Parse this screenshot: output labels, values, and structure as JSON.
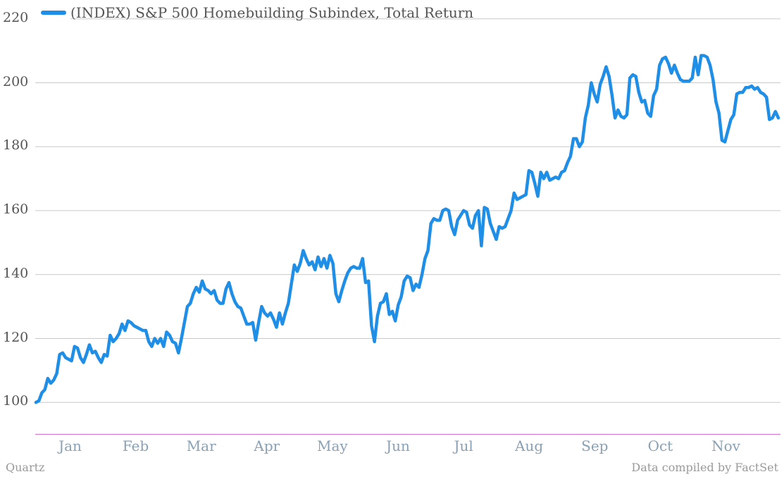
{
  "chart_data": {
    "type": "line",
    "series": [
      {
        "name": "(INDEX) S&P 500 Homebuilding Subindex, Total Return",
        "color": "#1f8ee6",
        "values": [
          100,
          100.5,
          103,
          104,
          107.5,
          106,
          107,
          109,
          115,
          115.5,
          114,
          113.5,
          113,
          117.5,
          117,
          114,
          112.5,
          115,
          118,
          115.5,
          116,
          114,
          112.5,
          115,
          114.5,
          121,
          119,
          120,
          121.5,
          124.5,
          122.5,
          125.5,
          125,
          124,
          123.5,
          123,
          122.5,
          122.5,
          119,
          117.5,
          120,
          118.5,
          120,
          117.5,
          122,
          121,
          119,
          118.5,
          115.5,
          120,
          125,
          130,
          131,
          134,
          136,
          134.5,
          138,
          135.5,
          135,
          134,
          135,
          132,
          131,
          131,
          135.5,
          137.5,
          134,
          131.5,
          130,
          129.5,
          127,
          124.5,
          124.5,
          125,
          119.5,
          125,
          130,
          128,
          127,
          128,
          126,
          123.5,
          128,
          124.5,
          128,
          131,
          137,
          143,
          141,
          143.5,
          147.5,
          145,
          143,
          144,
          141.5,
          145.5,
          142.5,
          145,
          142,
          146,
          143.5,
          134,
          131.5,
          135,
          138,
          140.5,
          142,
          142.5,
          142,
          142,
          145,
          137.5,
          138,
          124,
          119,
          127,
          131,
          131.5,
          134,
          127.5,
          128.5,
          125.5,
          130.5,
          133,
          138,
          139.5,
          139,
          135,
          137,
          136,
          140,
          145,
          147.5,
          156,
          157.5,
          157,
          157,
          160,
          160.5,
          160,
          155,
          152.5,
          157,
          158.5,
          160,
          159.5,
          155.5,
          154.5,
          158.5,
          160,
          149,
          161,
          160.5,
          156,
          153.5,
          151,
          155,
          154.5,
          155,
          157.5,
          160,
          165.5,
          163.5,
          164,
          164.5,
          165,
          172.5,
          172,
          168.5,
          164.5,
          172,
          170,
          172,
          169.5,
          170,
          170.5,
          170,
          172,
          172.5,
          175,
          177,
          182.5,
          182.5,
          180,
          181.5,
          189,
          193,
          200,
          196.5,
          194,
          199.5,
          202,
          205,
          202,
          196,
          189,
          191.5,
          189.5,
          189,
          190,
          201.5,
          202.5,
          202,
          197,
          194,
          194.5,
          190.5,
          189.5,
          196,
          198,
          205.5,
          207.5,
          208,
          206,
          203,
          205.5,
          203,
          201,
          200.5,
          200.5,
          200.5,
          201.5,
          208,
          202.5,
          208.5,
          208.5,
          208,
          205.5,
          201,
          194,
          190.5,
          182,
          181.5,
          185,
          188.5,
          190,
          196.5,
          197,
          197,
          198.5,
          198.5,
          199,
          198,
          198.5,
          197,
          196.5,
          195.5,
          188.5,
          189,
          191,
          189
        ],
        "start": "2013-01-01",
        "end": "2013-11-30"
      }
    ],
    "ylim": [
      90,
      220
    ],
    "yticks": [
      100,
      120,
      140,
      160,
      180,
      200,
      220
    ],
    "xticks": [
      "Jan",
      "Feb",
      "Mar",
      "Apr",
      "May",
      "Jun",
      "Jul",
      "Aug",
      "Sep",
      "Oct",
      "Nov"
    ],
    "grid": true,
    "legend_position": "top-left"
  },
  "footer": {
    "source_left": "Quartz",
    "source_right": "Data compiled by FactSet"
  },
  "colors": {
    "line": "#1f8ee6",
    "grid": "#c8c8c8",
    "baseline": "#cc66cc",
    "tick_label": "#8aa0b4",
    "axis_label": "#555555"
  }
}
